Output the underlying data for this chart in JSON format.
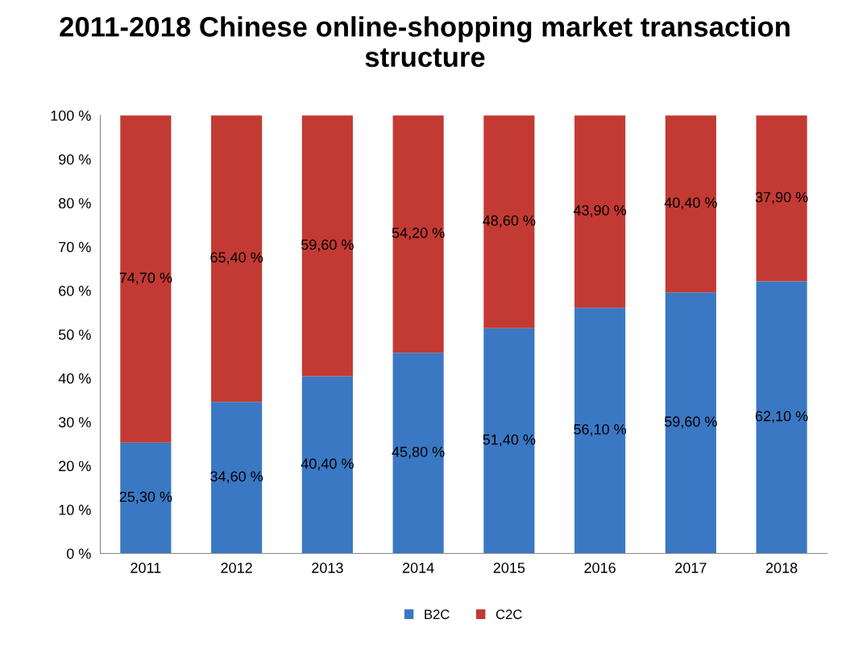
{
  "chart_data": {
    "type": "bar",
    "title": "2011-2018 Chinese online-shopping market transaction structure",
    "stacked": true,
    "categories": [
      "2011",
      "2012",
      "2013",
      "2014",
      "2015",
      "2016",
      "2017",
      "2018"
    ],
    "series": [
      {
        "name": "B2C",
        "color": "#3a78c4",
        "values": [
          25.3,
          34.6,
          40.4,
          45.8,
          51.4,
          56.1,
          59.6,
          62.1
        ],
        "value_labels": [
          "25,30 %",
          "34,60 %",
          "40,40 %",
          "45,80 %",
          "51,40 %",
          "56,10 %",
          "59,60 %",
          "62,10 %"
        ]
      },
      {
        "name": "C2C",
        "color": "#c23a33",
        "values": [
          74.7,
          65.4,
          59.6,
          54.2,
          48.6,
          43.9,
          40.4,
          37.9
        ],
        "value_labels": [
          "74,70 %",
          "65,40 %",
          "59,60 %",
          "54,20 %",
          "48,60 %",
          "43,90 %",
          "40,40 %",
          "37,90 %"
        ]
      }
    ],
    "ylim": [
      0,
      100
    ],
    "yticks": [
      {
        "value": 0,
        "label": "0 %"
      },
      {
        "value": 10,
        "label": "10 %"
      },
      {
        "value": 20,
        "label": "20 %"
      },
      {
        "value": 30,
        "label": "30 %"
      },
      {
        "value": 40,
        "label": "40 %"
      },
      {
        "value": 50,
        "label": "50 %"
      },
      {
        "value": 60,
        "label": "60 %"
      },
      {
        "value": 70,
        "label": "70 %"
      },
      {
        "value": 80,
        "label": "80 %"
      },
      {
        "value": 90,
        "label": "90 %"
      },
      {
        "value": 100,
        "label": "100 %"
      }
    ],
    "grid": false,
    "legend": "bottom"
  }
}
